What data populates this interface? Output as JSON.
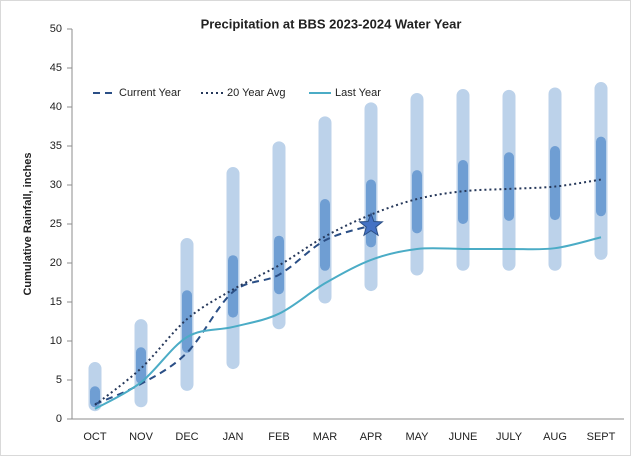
{
  "chart_data": {
    "type": "line",
    "title": "Precipitation at BBS 2023-2024 Water Year",
    "y_label": "Cumulative Rainfall, inches",
    "categories": [
      "OCT",
      "NOV",
      "DEC",
      "JAN",
      "FEB",
      "MAR",
      "APR",
      "MAY",
      "JUNE",
      "JULY",
      "AUG",
      "SEPT"
    ],
    "ylim": [
      0,
      50
    ],
    "yticks": [
      0,
      5,
      10,
      15,
      20,
      25,
      30,
      35,
      40,
      45,
      50
    ],
    "grid": false,
    "legend": "top-left",
    "bands": [
      {
        "color": "#bcd2ea",
        "low": [
          1,
          1.5,
          3.6,
          6.4,
          11.5,
          14.8,
          16.4,
          18.4,
          19,
          19,
          19,
          20.4
        ],
        "high": [
          7.3,
          12.8,
          23.2,
          32.3,
          35.6,
          38.8,
          40.6,
          41.8,
          42.3,
          42.2,
          42.5,
          43.2
        ]
      },
      {
        "color": "#6f9ed3",
        "low": [
          1.5,
          4.5,
          8.5,
          13,
          16,
          19,
          22,
          23.8,
          25,
          25.4,
          25.5,
          26
        ],
        "high": [
          4.2,
          9.2,
          16.5,
          21,
          23.5,
          28.2,
          30.7,
          31.9,
          33.2,
          34.2,
          35,
          36.2
        ]
      }
    ],
    "series": [
      {
        "name": "Current Year",
        "color": "#2b4f86",
        "dash": "7,5",
        "values": [
          1.9,
          4.5,
          8.5,
          16.3,
          18.5,
          22.9,
          24.8,
          null,
          null,
          null,
          null,
          null
        ]
      },
      {
        "name": "20 Year Avg",
        "color": "#26385a",
        "dash": "2,3",
        "values": [
          1.8,
          6.5,
          12.8,
          16.6,
          19.7,
          23.4,
          26.2,
          28.2,
          29.2,
          29.5,
          29.8,
          30.7
        ]
      },
      {
        "name": "Last Year",
        "color": "#4bacc6",
        "dash": "",
        "values": [
          1.3,
          4.7,
          10.5,
          11.8,
          13.5,
          17.4,
          20.4,
          21.8,
          21.8,
          21.8,
          21.9,
          23.3
        ]
      }
    ]
  }
}
